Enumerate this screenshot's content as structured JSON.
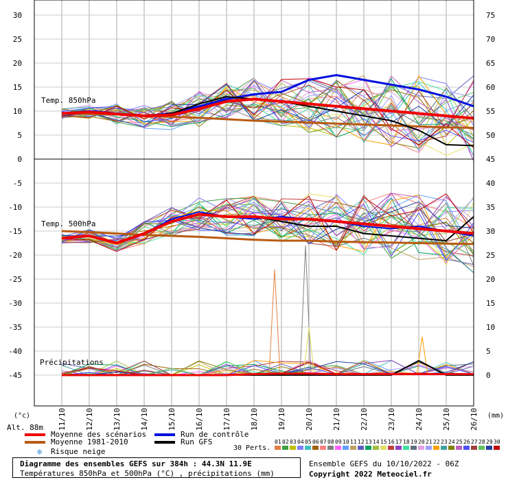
{
  "chart_data": {
    "type": "line",
    "x_dates": [
      "11/10",
      "12/10",
      "13/10",
      "14/10",
      "15/10",
      "16/10",
      "17/10",
      "18/10",
      "19/10",
      "20/10",
      "21/10",
      "22/10",
      "23/10",
      "24/10",
      "25/10",
      "26/10"
    ],
    "left_axis_ticks": [
      30,
      25,
      20,
      15,
      10,
      5,
      0,
      -5,
      -10,
      -15,
      -20,
      -25,
      -30,
      -35,
      -40,
      -45
    ],
    "right_axis_ticks": [
      75,
      70,
      65,
      60,
      55,
      50,
      45,
      40,
      35,
      30,
      25,
      20,
      15,
      10,
      5,
      0
    ],
    "left_unit": "(°c)",
    "right_unit": "(mm)",
    "altitude_label": "Alt. 88m",
    "panels": {
      "t850": {
        "label": "Temp. 850hPa",
        "mean_scenarios": [
          9.5,
          9.8,
          9.4,
          9.0,
          9.2,
          10.5,
          12.0,
          12.5,
          12.0,
          11.5,
          11.0,
          10.5,
          10.0,
          9.5,
          9.0,
          8.5
        ],
        "mean_1981_2010": [
          9.5,
          9.4,
          9.3,
          9.0,
          8.8,
          8.6,
          8.3,
          8.0,
          7.8,
          7.6,
          7.4,
          7.2,
          7.0,
          6.8,
          6.6,
          6.5
        ],
        "control_run": [
          9.5,
          10.0,
          9.5,
          9.0,
          9.5,
          11.0,
          12.5,
          13.5,
          14.0,
          16.5,
          17.5,
          16.5,
          15.5,
          14.5,
          13.0,
          11.0
        ],
        "gfs_run": [
          9.5,
          9.8,
          9.5,
          9.0,
          9.5,
          11.5,
          13.0,
          12.5,
          12.0,
          11.0,
          10.0,
          9.0,
          8.0,
          6.0,
          3.0,
          2.8
        ]
      },
      "t500": {
        "label": "Temp. 500hPa",
        "mean_scenarios": [
          -16.5,
          -16.0,
          -17.5,
          -15.5,
          -13.0,
          -11.5,
          -12.0,
          -12.0,
          -12.5,
          -12.5,
          -13.0,
          -13.5,
          -14.0,
          -14.5,
          -15.0,
          -15.5
        ],
        "mean_1981_2010": [
          -15.0,
          -15.2,
          -15.5,
          -15.8,
          -16.0,
          -16.2,
          -16.5,
          -16.8,
          -17.0,
          -17.0,
          -17.2,
          -17.3,
          -17.4,
          -17.5,
          -17.6,
          -17.7
        ],
        "control_run": [
          -16.5,
          -16.0,
          -17.5,
          -15.5,
          -12.5,
          -11.0,
          -12.0,
          -12.5,
          -12.0,
          -12.5,
          -13.0,
          -14.0,
          -14.5,
          -14.0,
          -15.0,
          -16.0
        ],
        "gfs_run": [
          -16.5,
          -16.0,
          -17.5,
          -15.5,
          -13.0,
          -11.5,
          -12.0,
          -12.0,
          -13.0,
          -14.0,
          -14.0,
          -15.5,
          -16.0,
          -16.5,
          -17.0,
          -12.0
        ]
      },
      "precip": {
        "label": "Précipitations",
        "mean_scenarios": [
          0,
          0,
          0,
          0,
          0,
          0,
          0,
          0.2,
          0.3,
          0.3,
          0.2,
          0.2,
          0.2,
          0.2,
          0.2,
          0.2
        ],
        "gfs_run": [
          0,
          0,
          0,
          0,
          0,
          0,
          0,
          0,
          0,
          0,
          0,
          0,
          0,
          3,
          0,
          0
        ],
        "notable_peaks": [
          {
            "date": "19/10",
            "value": 22
          },
          {
            "date": "20/10",
            "value": 27
          },
          {
            "date": "20/10",
            "value": 10
          },
          {
            "date": "24/10",
            "value": 8
          }
        ]
      }
    },
    "legend": [
      {
        "label": "Moyenne des scénarios",
        "color": "#ee0000"
      },
      {
        "label": "Moyenne 1981-2010",
        "color": "#b85a10"
      },
      {
        "label": "Run de contrôle",
        "color": "#0010dd"
      },
      {
        "label": "Run GFS",
        "color": "#000000"
      },
      {
        "label": "Risque neige",
        "color": "#3a8fd8"
      }
    ],
    "perturbations": {
      "label": "30 Perts.",
      "ids": [
        "01",
        "02",
        "03",
        "04",
        "05",
        "06",
        "07",
        "08",
        "09",
        "10",
        "11",
        "12",
        "13",
        "14",
        "15",
        "16",
        "17",
        "18",
        "19",
        "20",
        "21",
        "22",
        "23",
        "24",
        "25",
        "26",
        "27",
        "28",
        "29",
        "30"
      ],
      "colors": [
        "#e08040",
        "#40a040",
        "#c0c000",
        "#8080ff",
        "#40c0c0",
        "#a06000",
        "#ff8080",
        "#808080",
        "#ff60ff",
        "#60a0ff",
        "#c0a060",
        "#6060c0",
        "#00a060",
        "#a0c040",
        "#e0e060",
        "#c04040",
        "#9040c0",
        "#40e0a0",
        "#607080",
        "#e0a0e0",
        "#a0a0ff",
        "#ffa000",
        "#40a0a0",
        "#808000",
        "#c060c0",
        "#5050ff",
        "#a04040",
        "#60c060",
        "#2040a0",
        "#c00000"
      ]
    },
    "info_box": {
      "title": "Diagramme des ensembles GEFS sur 384h : 44.3N 11.9E",
      "subtitle": "Températures 850hPa et 500hPa (°C) , précipitations (mm)"
    },
    "run_info": "Ensemble GEFS du 10/10/2022 - 06Z",
    "copyright": "Copyright 2022 Meteociel.fr",
    "grid": true
  }
}
